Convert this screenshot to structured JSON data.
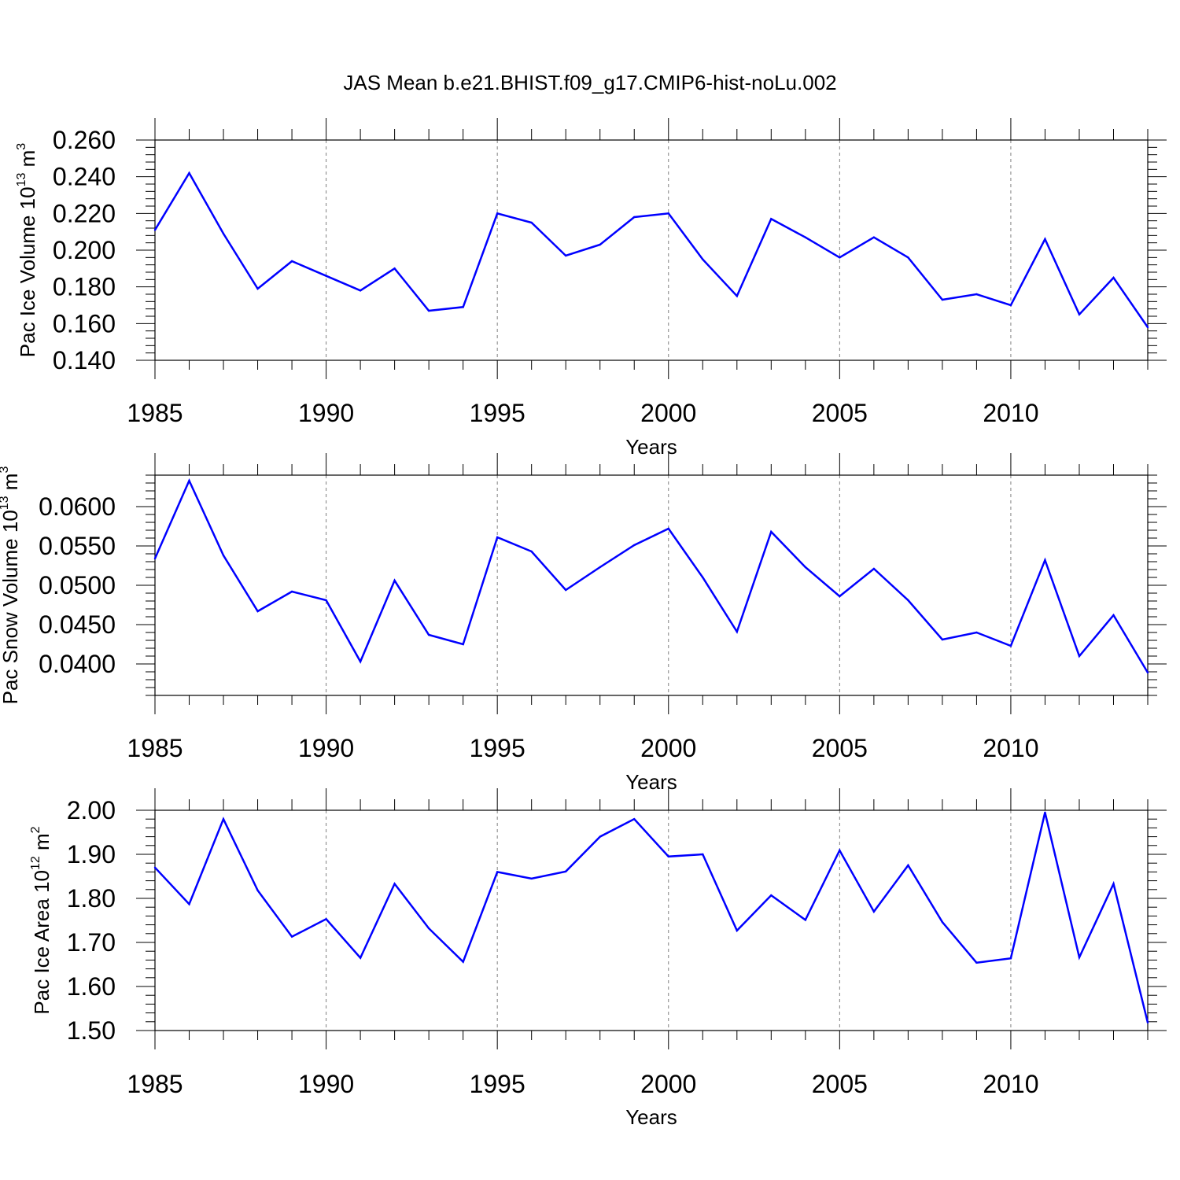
{
  "title": "JAS Mean b.e21.BHIST.f09_g17.CMIP6-hist-noLu.002",
  "colors": {
    "line": "#0000ff",
    "axis": "#000000",
    "grid": "#808080"
  },
  "chart_data": [
    {
      "type": "line",
      "xlabel": "Years",
      "ylabel_main": "Pac Ice Volume 10",
      "ylabel_exp": "13",
      "ylabel_unit": " m",
      "ylabel_unit_exp": "3",
      "xlim": [
        1985,
        2014
      ],
      "ylim": [
        0.14,
        0.26
      ],
      "xticks": [
        1985,
        1990,
        1995,
        2000,
        2005,
        2010
      ],
      "yticks": [
        0.14,
        0.16,
        0.18,
        0.2,
        0.22,
        0.24,
        0.26
      ],
      "ytick_labels": [
        "0.140",
        "0.160",
        "0.180",
        "0.200",
        "0.220",
        "0.240",
        "0.260"
      ],
      "x": [
        1985,
        1986,
        1987,
        1988,
        1989,
        1990,
        1991,
        1992,
        1993,
        1994,
        1995,
        1996,
        1997,
        1998,
        1999,
        2000,
        2001,
        2002,
        2003,
        2004,
        2005,
        2006,
        2007,
        2008,
        2009,
        2010,
        2011,
        2012,
        2013,
        2014
      ],
      "values": [
        0.211,
        0.242,
        0.209,
        0.179,
        0.194,
        0.186,
        0.178,
        0.19,
        0.167,
        0.169,
        0.22,
        0.215,
        0.197,
        0.203,
        0.218,
        0.22,
        0.195,
        0.175,
        0.217,
        0.207,
        0.196,
        0.207,
        0.196,
        0.173,
        0.176,
        0.17,
        0.206,
        0.165,
        0.185,
        0.158
      ]
    },
    {
      "type": "line",
      "xlabel": "Years",
      "ylabel_main": "Pac Snow Volume 10",
      "ylabel_exp": "13",
      "ylabel_unit": " m",
      "ylabel_unit_exp": "3",
      "xlim": [
        1985,
        2014
      ],
      "ylim": [
        0.036,
        0.064
      ],
      "xticks": [
        1985,
        1990,
        1995,
        2000,
        2005,
        2010
      ],
      "yticks": [
        0.04,
        0.045,
        0.05,
        0.055,
        0.06
      ],
      "ytick_labels": [
        "0.0400",
        "0.0450",
        "0.0500",
        "0.0550",
        "0.0600"
      ],
      "x": [
        1985,
        1986,
        1987,
        1988,
        1989,
        1990,
        1991,
        1992,
        1993,
        1994,
        1995,
        1996,
        1997,
        1998,
        1999,
        2000,
        2001,
        2002,
        2003,
        2004,
        2005,
        2006,
        2007,
        2008,
        2009,
        2010,
        2011,
        2012,
        2013,
        2014
      ],
      "values": [
        0.0534,
        0.0633,
        0.0538,
        0.0467,
        0.0492,
        0.0481,
        0.0403,
        0.0506,
        0.0437,
        0.0425,
        0.0561,
        0.0543,
        0.0494,
        0.0523,
        0.0551,
        0.0572,
        0.051,
        0.0441,
        0.0568,
        0.0523,
        0.0486,
        0.0521,
        0.0481,
        0.0431,
        0.044,
        0.0423,
        0.0532,
        0.041,
        0.0462,
        0.0389
      ]
    },
    {
      "type": "line",
      "xlabel": "Years",
      "ylabel_main": "Pac Ice Area 10",
      "ylabel_exp": "12",
      "ylabel_unit": " m",
      "ylabel_unit_exp": "2",
      "xlim": [
        1985,
        2014
      ],
      "ylim": [
        1.5,
        2.0
      ],
      "xticks": [
        1985,
        1990,
        1995,
        2000,
        2005,
        2010
      ],
      "yticks": [
        1.5,
        1.6,
        1.7,
        1.8,
        1.9,
        2.0
      ],
      "ytick_labels": [
        "1.50",
        "1.60",
        "1.70",
        "1.80",
        "1.90",
        "2.00"
      ],
      "x": [
        1985,
        1986,
        1987,
        1988,
        1989,
        1990,
        1991,
        1992,
        1993,
        1994,
        1995,
        1996,
        1997,
        1998,
        1999,
        2000,
        2001,
        2002,
        2003,
        2004,
        2005,
        2006,
        2007,
        2008,
        2009,
        2010,
        2011,
        2012,
        2013,
        2014
      ],
      "values": [
        1.87,
        1.787,
        1.98,
        1.818,
        1.713,
        1.753,
        1.665,
        1.833,
        1.732,
        1.656,
        1.86,
        1.845,
        1.861,
        1.94,
        1.98,
        1.895,
        1.9,
        1.727,
        1.807,
        1.751,
        1.909,
        1.77,
        1.875,
        1.746,
        1.654,
        1.664,
        1.995,
        1.666,
        1.833,
        1.518
      ]
    }
  ]
}
